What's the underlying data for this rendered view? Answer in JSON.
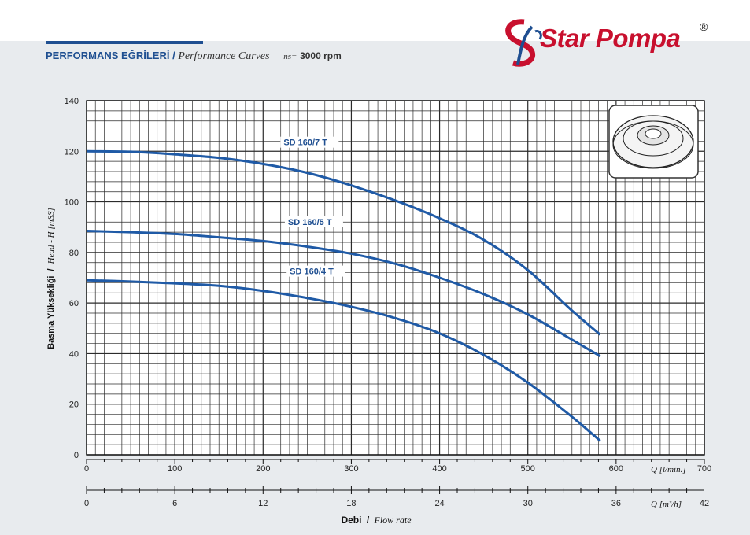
{
  "header": {
    "title_tr": "PERFORMANS EĞRİLERİ",
    "separator": "/",
    "title_en": "Performance Curves",
    "ns_label": "ns=",
    "rpm": "3000 rpm"
  },
  "brand": {
    "name": "Star Pompa",
    "registered": "®",
    "color": "#c8102e"
  },
  "colors": {
    "curve": "#1f5aa6",
    "grid": "#2b2b2b",
    "label": "#1f4f91"
  },
  "chart_data": {
    "type": "line",
    "ylabel_tr": "Basma Yüksekliği",
    "ylabel_sep": "/",
    "ylabel_en": "Head - H [mSS]",
    "xlabel_tr": "Debi",
    "xlabel_sep": "/",
    "xlabel_en": "Flow rate",
    "x_unit_primary": "Q [l/min.]",
    "x_unit_secondary": "Q [m³/h]",
    "xlim": [
      0,
      700
    ],
    "ylim": [
      0,
      140
    ],
    "y_ticks": [
      "0",
      "20",
      "40",
      "60",
      "80",
      "100",
      "120",
      "140"
    ],
    "x_ticks_primary": [
      "0",
      "100",
      "200",
      "300",
      "400",
      "500",
      "600",
      "700"
    ],
    "x_ticks_secondary": [
      "0",
      "6",
      "12",
      "18",
      "24",
      "30",
      "36",
      "42"
    ],
    "grid": true,
    "series": [
      {
        "name": "SD 160/7 T",
        "x": [
          0,
          50,
          100,
          150,
          200,
          250,
          300,
          350,
          400,
          450,
          500,
          550,
          582
        ],
        "y": [
          120,
          119.8,
          118.8,
          117.4,
          115,
          111.5,
          106.5,
          100.5,
          93.5,
          85,
          73,
          57,
          47.5
        ]
      },
      {
        "name": "SD 160/5 T",
        "x": [
          0,
          50,
          100,
          150,
          200,
          250,
          300,
          350,
          400,
          450,
          500,
          550,
          582
        ],
        "y": [
          88.5,
          88,
          87.3,
          86,
          84.5,
          82.3,
          79.5,
          75.5,
          70,
          63.5,
          55.5,
          45.5,
          39
        ]
      },
      {
        "name": "SD 160/4 T",
        "x": [
          0,
          50,
          100,
          150,
          200,
          250,
          300,
          350,
          400,
          450,
          500,
          550,
          582
        ],
        "y": [
          69,
          68.5,
          67.8,
          66.8,
          64.8,
          62,
          58.5,
          54,
          48,
          39.5,
          28.5,
          15,
          5.5
        ]
      }
    ]
  }
}
